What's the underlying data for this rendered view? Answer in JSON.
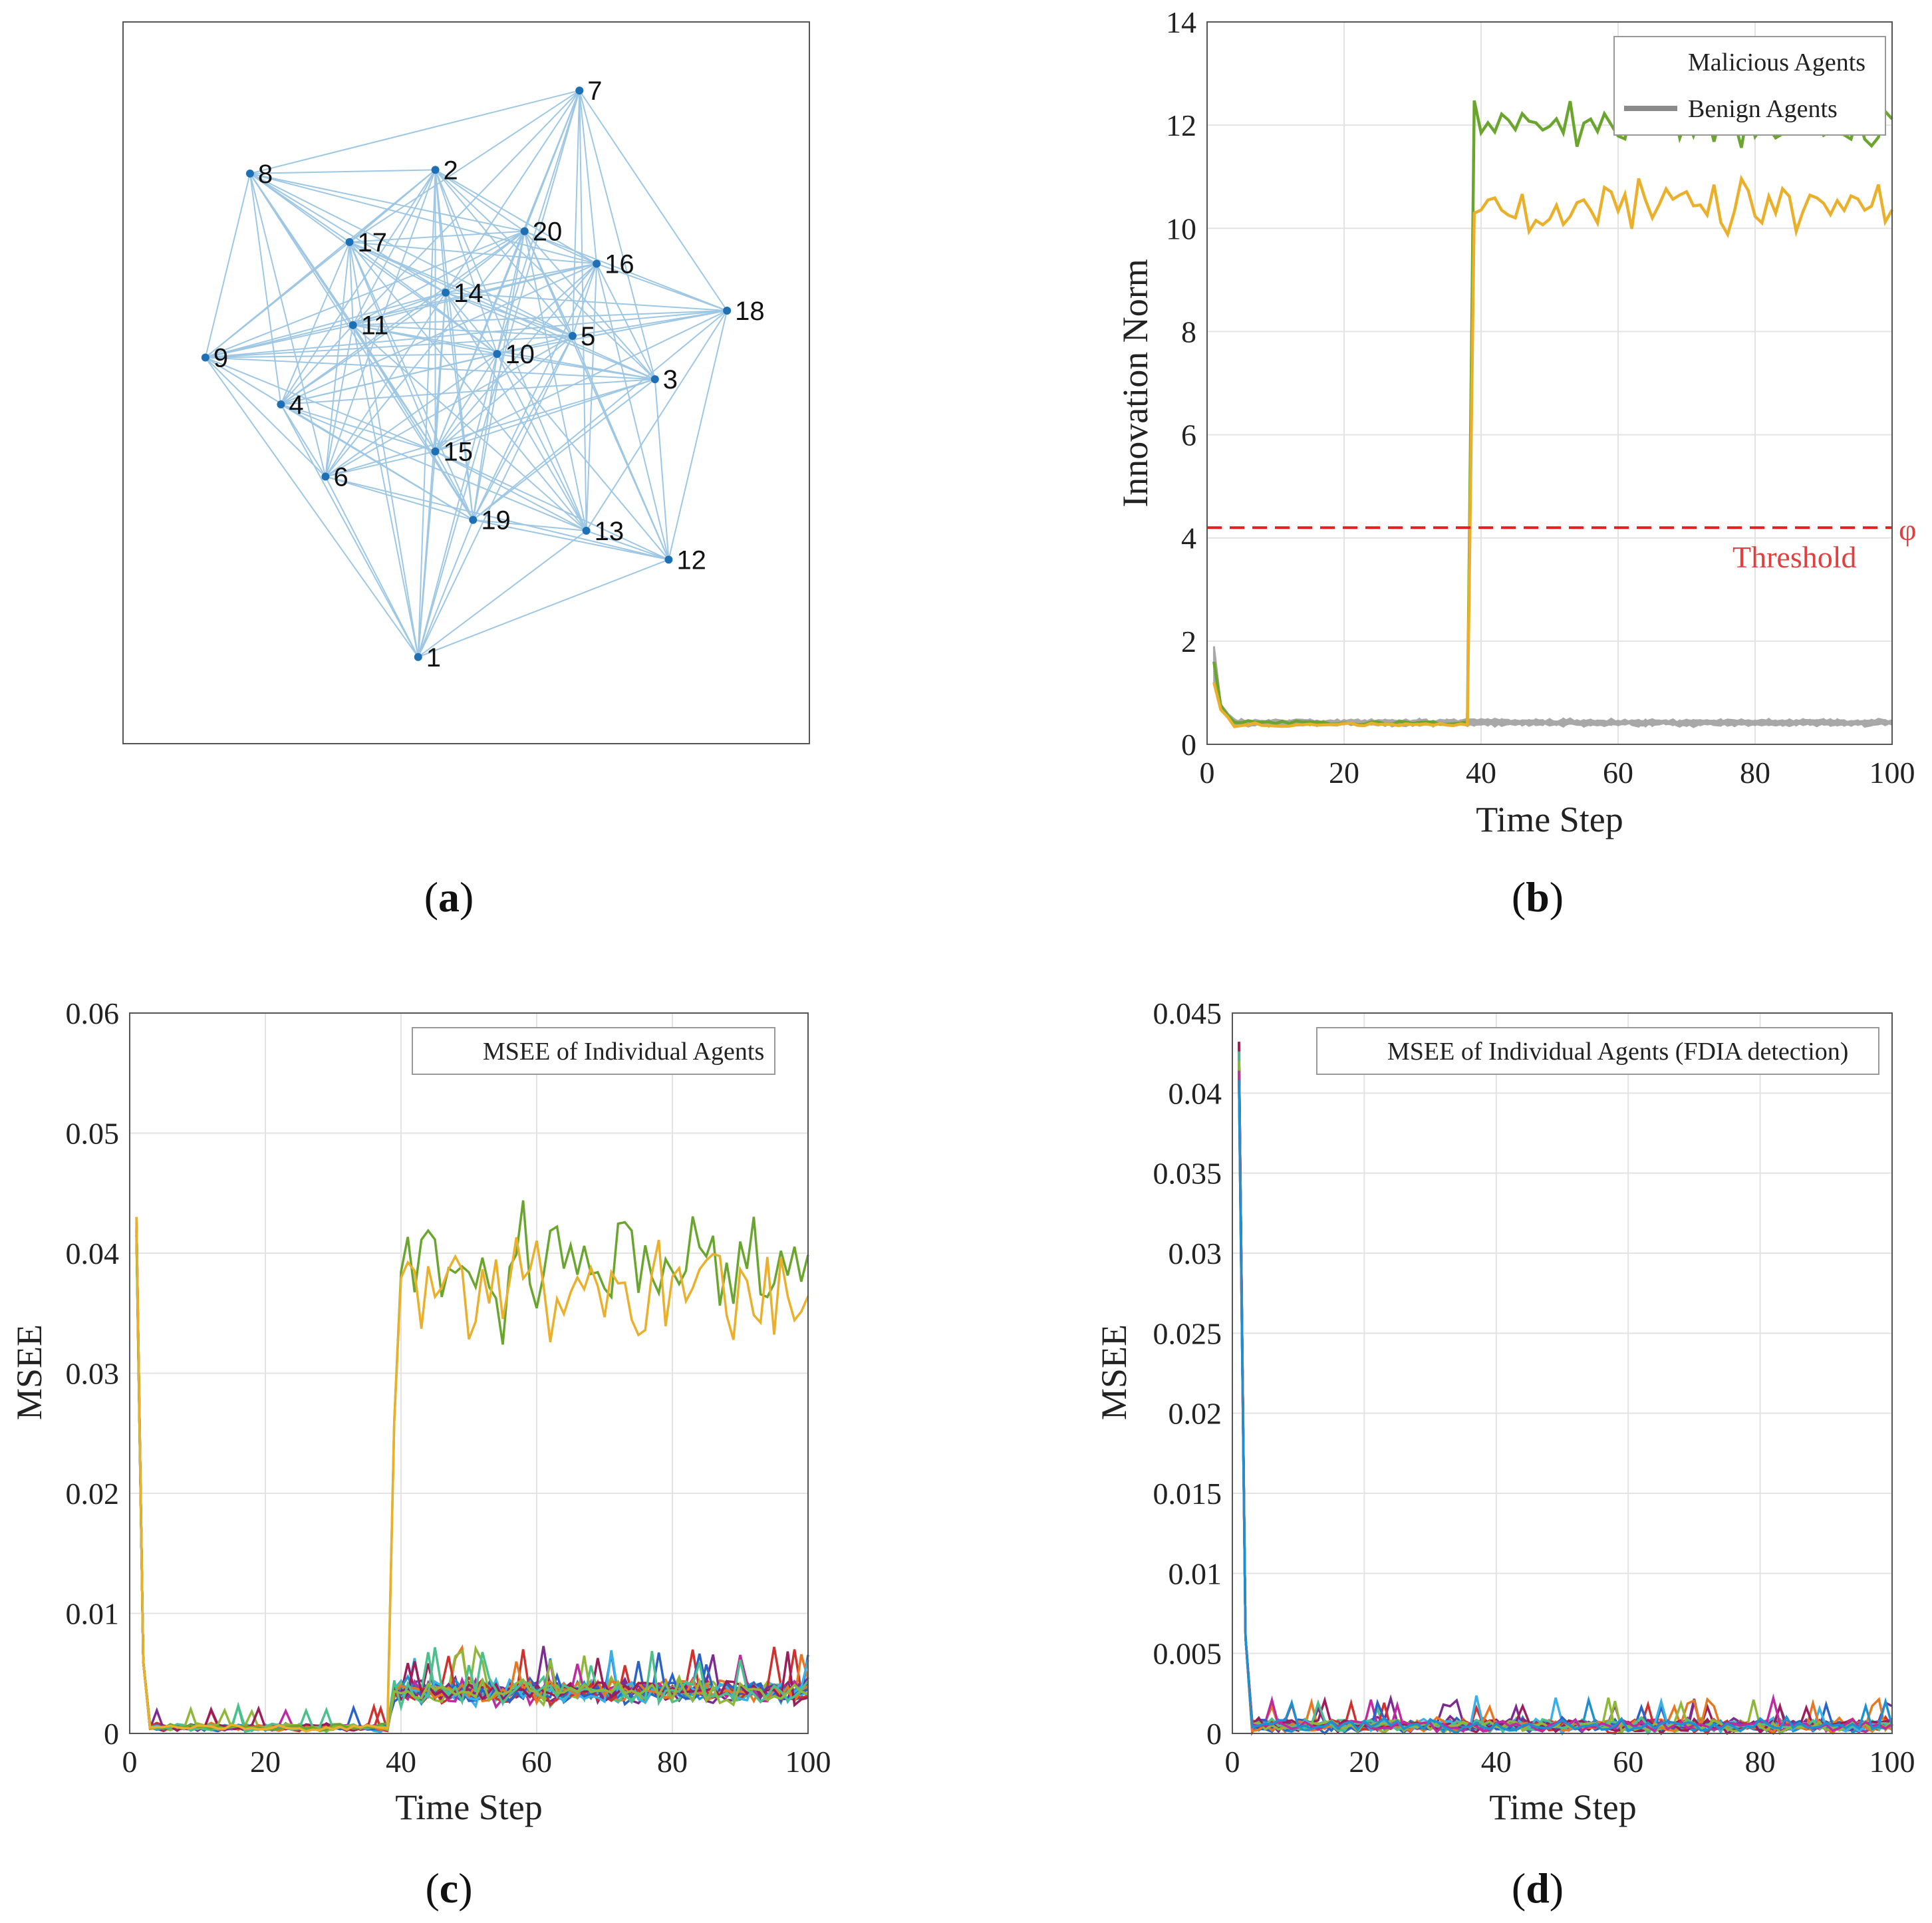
{
  "captions": {
    "a": "a",
    "b": "b",
    "c": "c",
    "d": "d"
  },
  "colors": {
    "edge": "#9ec7e4",
    "node": "#1f6fb5",
    "grid": "#e3e3e3",
    "axis": "#444444",
    "threshold": "#e02020",
    "benign": "#a8a8a8",
    "green": "#6aa62e",
    "orange": "#eab02c",
    "palette": [
      "#d0312d",
      "#7b2c8f",
      "#2a62c8",
      "#3ab0e8",
      "#e87722",
      "#9b1d5a",
      "#4bbf8c",
      "#8fb83a",
      "#c02aa0",
      "#1e8fd0"
    ]
  },
  "chart_data": [
    {
      "id": "a",
      "type": "network",
      "nodes": [
        {
          "id": "1",
          "x": 0.43,
          "y": 0.88
        },
        {
          "id": "2",
          "x": 0.455,
          "y": 0.205
        },
        {
          "id": "3",
          "x": 0.775,
          "y": 0.495
        },
        {
          "id": "4",
          "x": 0.23,
          "y": 0.53
        },
        {
          "id": "5",
          "x": 0.655,
          "y": 0.435
        },
        {
          "id": "6",
          "x": 0.295,
          "y": 0.63
        },
        {
          "id": "7",
          "x": 0.665,
          "y": 0.095
        },
        {
          "id": "8",
          "x": 0.185,
          "y": 0.21
        },
        {
          "id": "9",
          "x": 0.12,
          "y": 0.465
        },
        {
          "id": "10",
          "x": 0.545,
          "y": 0.46
        },
        {
          "id": "11",
          "x": 0.335,
          "y": 0.42
        },
        {
          "id": "12",
          "x": 0.795,
          "y": 0.745
        },
        {
          "id": "13",
          "x": 0.675,
          "y": 0.705
        },
        {
          "id": "14",
          "x": 0.47,
          "y": 0.375
        },
        {
          "id": "15",
          "x": 0.455,
          "y": 0.595
        },
        {
          "id": "16",
          "x": 0.69,
          "y": 0.335
        },
        {
          "id": "17",
          "x": 0.33,
          "y": 0.305
        },
        {
          "id": "18",
          "x": 0.88,
          "y": 0.4
        },
        {
          "id": "19",
          "x": 0.51,
          "y": 0.69
        },
        {
          "id": "20",
          "x": 0.585,
          "y": 0.29
        }
      ],
      "edges": [
        [
          1,
          2
        ],
        [
          1,
          4
        ],
        [
          1,
          5
        ],
        [
          1,
          6
        ],
        [
          1,
          7
        ],
        [
          1,
          9
        ],
        [
          1,
          10
        ],
        [
          1,
          11
        ],
        [
          1,
          12
        ],
        [
          1,
          13
        ],
        [
          1,
          14
        ],
        [
          1,
          15
        ],
        [
          1,
          17
        ],
        [
          1,
          19
        ],
        [
          2,
          3
        ],
        [
          2,
          4
        ],
        [
          2,
          5
        ],
        [
          2,
          6
        ],
        [
          2,
          8
        ],
        [
          2,
          9
        ],
        [
          2,
          10
        ],
        [
          2,
          11
        ],
        [
          2,
          13
        ],
        [
          2,
          14
        ],
        [
          2,
          15
        ],
        [
          2,
          16
        ],
        [
          2,
          17
        ],
        [
          2,
          19
        ],
        [
          2,
          20
        ],
        [
          3,
          4
        ],
        [
          3,
          6
        ],
        [
          3,
          7
        ],
        [
          3,
          9
        ],
        [
          3,
          10
        ],
        [
          3,
          11
        ],
        [
          3,
          12
        ],
        [
          3,
          14
        ],
        [
          3,
          15
        ],
        [
          3,
          16
        ],
        [
          3,
          17
        ],
        [
          3,
          19
        ],
        [
          3,
          20
        ],
        [
          4,
          5
        ],
        [
          4,
          6
        ],
        [
          4,
          8
        ],
        [
          4,
          10
        ],
        [
          4,
          11
        ],
        [
          4,
          13
        ],
        [
          4,
          14
        ],
        [
          4,
          15
        ],
        [
          4,
          16
        ],
        [
          4,
          17
        ],
        [
          4,
          19
        ],
        [
          4,
          20
        ],
        [
          5,
          6
        ],
        [
          5,
          7
        ],
        [
          5,
          8
        ],
        [
          5,
          9
        ],
        [
          5,
          11
        ],
        [
          5,
          12
        ],
        [
          5,
          14
        ],
        [
          5,
          15
        ],
        [
          5,
          16
        ],
        [
          5,
          17
        ],
        [
          5,
          18
        ],
        [
          5,
          19
        ],
        [
          5,
          20
        ],
        [
          6,
          8
        ],
        [
          6,
          9
        ],
        [
          6,
          10
        ],
        [
          6,
          11
        ],
        [
          6,
          12
        ],
        [
          6,
          14
        ],
        [
          6,
          15
        ],
        [
          6,
          17
        ],
        [
          6,
          19
        ],
        [
          6,
          20
        ],
        [
          7,
          8
        ],
        [
          7,
          10
        ],
        [
          7,
          11
        ],
        [
          7,
          13
        ],
        [
          7,
          14
        ],
        [
          7,
          15
        ],
        [
          7,
          16
        ],
        [
          7,
          17
        ],
        [
          7,
          18
        ],
        [
          7,
          20
        ],
        [
          8,
          9
        ],
        [
          8,
          10
        ],
        [
          8,
          11
        ],
        [
          8,
          14
        ],
        [
          8,
          15
        ],
        [
          8,
          16
        ],
        [
          8,
          17
        ],
        [
          8,
          19
        ],
        [
          8,
          20
        ],
        [
          9,
          10
        ],
        [
          9,
          11
        ],
        [
          9,
          14
        ],
        [
          9,
          15
        ],
        [
          9,
          16
        ],
        [
          9,
          17
        ],
        [
          9,
          18
        ],
        [
          9,
          19
        ],
        [
          9,
          20
        ],
        [
          10,
          11
        ],
        [
          10,
          12
        ],
        [
          10,
          13
        ],
        [
          10,
          14
        ],
        [
          10,
          15
        ],
        [
          10,
          16
        ],
        [
          10,
          17
        ],
        [
          10,
          18
        ],
        [
          10,
          19
        ],
        [
          10,
          20
        ],
        [
          11,
          13
        ],
        [
          11,
          14
        ],
        [
          11,
          15
        ],
        [
          11,
          16
        ],
        [
          11,
          17
        ],
        [
          11,
          18
        ],
        [
          11,
          19
        ],
        [
          11,
          20
        ],
        [
          12,
          13
        ],
        [
          12,
          15
        ],
        [
          12,
          16
        ],
        [
          12,
          18
        ],
        [
          12,
          19
        ],
        [
          12,
          20
        ],
        [
          13,
          14
        ],
        [
          13,
          15
        ],
        [
          13,
          16
        ],
        [
          13,
          17
        ],
        [
          13,
          18
        ],
        [
          13,
          19
        ],
        [
          13,
          20
        ],
        [
          14,
          15
        ],
        [
          14,
          16
        ],
        [
          14,
          17
        ],
        [
          14,
          18
        ],
        [
          14,
          19
        ],
        [
          14,
          20
        ],
        [
          15,
          16
        ],
        [
          15,
          17
        ],
        [
          15,
          18
        ],
        [
          15,
          19
        ],
        [
          15,
          20
        ],
        [
          16,
          17
        ],
        [
          16,
          18
        ],
        [
          16,
          19
        ],
        [
          16,
          20
        ],
        [
          17,
          19
        ],
        [
          17,
          20
        ],
        [
          18,
          19
        ],
        [
          18,
          20
        ],
        [
          19,
          20
        ]
      ]
    },
    {
      "id": "b",
      "type": "line",
      "xlabel": "Time Step",
      "ylabel": "Innovation Norm",
      "xlim": [
        0,
        100
      ],
      "ylim": [
        0,
        14
      ],
      "xticks": [
        0,
        20,
        40,
        60,
        80,
        100
      ],
      "yticks": [
        0,
        2,
        4,
        6,
        8,
        10,
        12,
        14
      ],
      "grid": true,
      "threshold": {
        "value": 4.2,
        "label": "Threshold",
        "symbol": "φ"
      },
      "legend": {
        "position": "top-right",
        "entries": [
          "Malicious Agents",
          "Benign Agents"
        ]
      },
      "malicious": [
        {
          "name": "Malicious agent (green)",
          "color": "#6aa62e",
          "attack_start": 39,
          "base": 0.42,
          "attack_mean": 12.0,
          "attack_amp": 0.45,
          "start": 1.6
        },
        {
          "name": "Malicious agent (orange)",
          "color": "#eab02c",
          "attack_start": 39,
          "base": 0.38,
          "attack_mean": 10.4,
          "attack_amp": 0.5,
          "start": 1.2
        }
      ],
      "benign": {
        "count": 18,
        "start": 1.9,
        "mean": 0.42,
        "amp": 0.09
      },
      "annotations": [
        "Threshold",
        "φ"
      ]
    },
    {
      "id": "c",
      "type": "line",
      "xlabel": "Time Step",
      "ylabel": "MSEE",
      "xlim": [
        0,
        100
      ],
      "ylim": [
        0,
        0.06
      ],
      "xticks": [
        0,
        20,
        40,
        60,
        80,
        100
      ],
      "yticks": [
        0,
        0.01,
        0.02,
        0.03,
        0.04,
        0.05,
        0.06
      ],
      "ytick_labels": [
        "0",
        "0.01",
        "0.02",
        "0.03",
        "0.04",
        "0.05",
        "0.06"
      ],
      "grid": true,
      "legend": {
        "position": "top-right",
        "entries": [
          "MSEE of Individual Agents"
        ]
      },
      "initial": 0.043,
      "attacked": [
        {
          "color": "#6aa62e",
          "attack_start": 39,
          "mean": 0.039,
          "amp": 0.0055
        },
        {
          "color": "#eab02c",
          "attack_start": 39,
          "mean": 0.037,
          "amp": 0.005
        }
      ],
      "others": {
        "count": 18,
        "pre_mean": 0.0005,
        "post_mean": 0.0035,
        "amp": 0.0015
      }
    },
    {
      "id": "d",
      "type": "line",
      "xlabel": "Time Step",
      "ylabel": "MSEE",
      "xlim": [
        0,
        100
      ],
      "ylim": [
        0,
        0.045
      ],
      "xticks": [
        0,
        20,
        40,
        60,
        80,
        100
      ],
      "yticks": [
        0,
        0.005,
        0.01,
        0.015,
        0.02,
        0.025,
        0.03,
        0.035,
        0.04,
        0.045
      ],
      "ytick_labels": [
        "0",
        "0.005",
        "0.01",
        "0.015",
        "0.02",
        "0.025",
        "0.03",
        "0.035",
        "0.04",
        "0.045"
      ],
      "grid": true,
      "legend": {
        "position": "top-right",
        "entries": [
          "MSEE of Individual Agents (FDIA detection)"
        ]
      },
      "initial": 0.0432,
      "others": {
        "count": 20,
        "pre_mean": 0.0005,
        "post_mean": 0.0006,
        "amp": 0.0006
      }
    }
  ]
}
